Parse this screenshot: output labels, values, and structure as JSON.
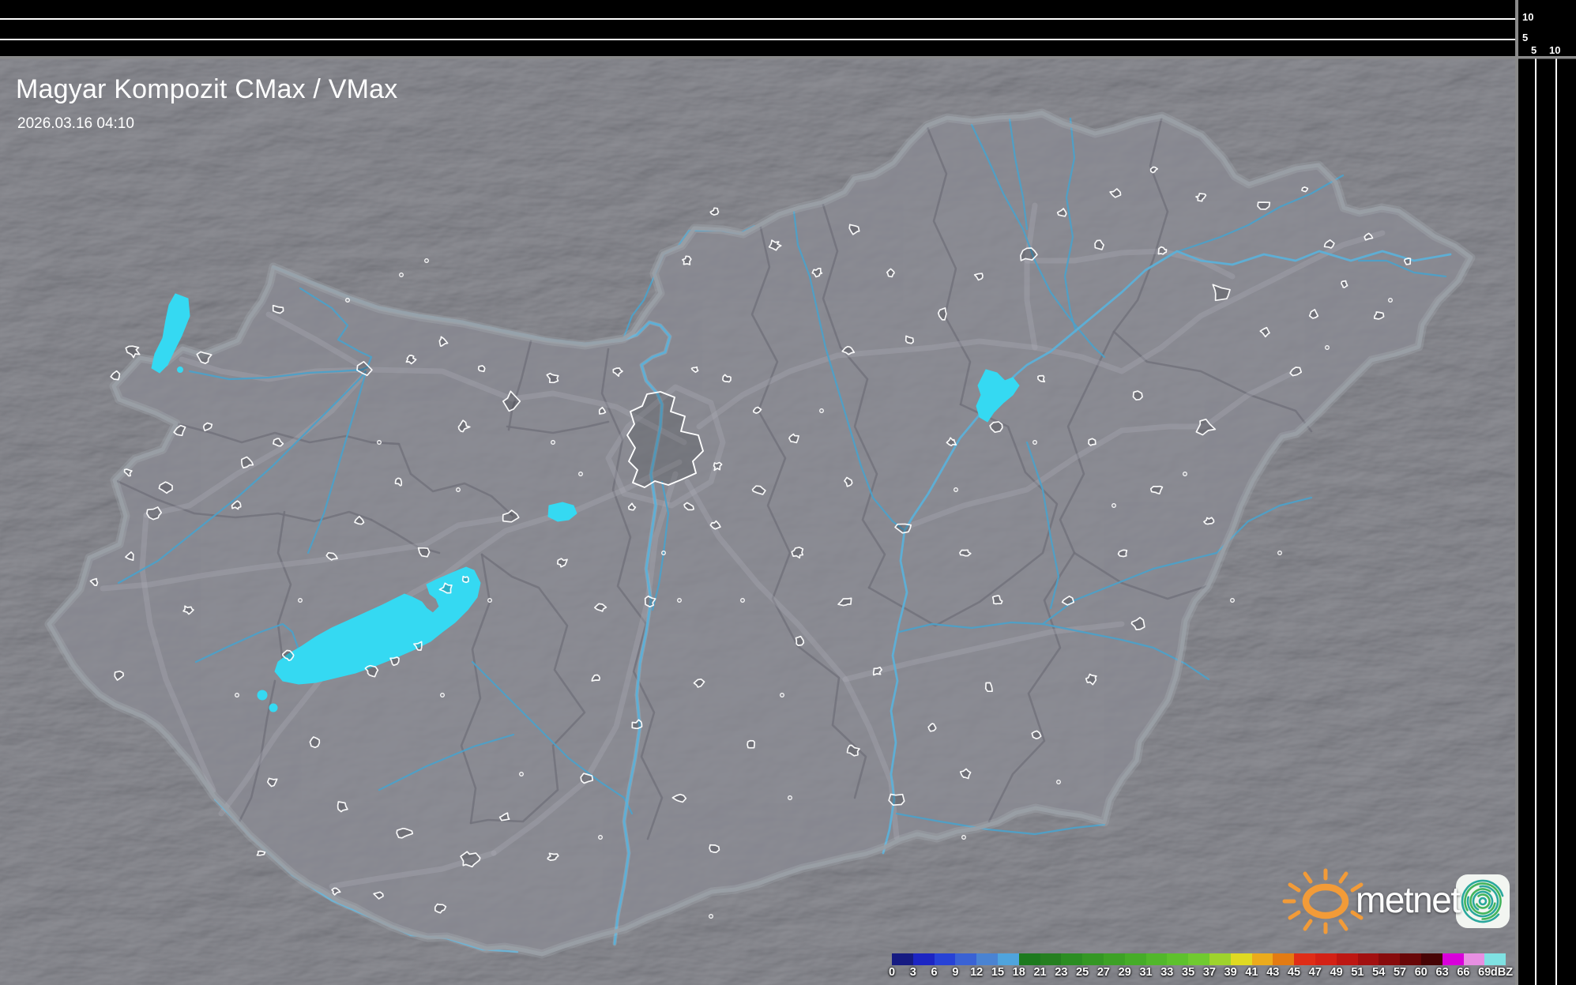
{
  "header": {
    "title": "Magyar Kompozit CMax / VMax",
    "datetime": "2026.03.16 04:10"
  },
  "profile_axes": {
    "top": [
      "10",
      "5"
    ],
    "right": [
      "5",
      "10"
    ]
  },
  "legend": {
    "unit": "dBZ",
    "ticks": [
      "0",
      "3",
      "6",
      "9",
      "12",
      "15",
      "18",
      "21",
      "23",
      "25",
      "27",
      "29",
      "31",
      "33",
      "35",
      "37",
      "39",
      "41",
      "43",
      "45",
      "47",
      "49",
      "51",
      "54",
      "57",
      "60",
      "63",
      "66",
      "69"
    ],
    "colors": [
      "#161b82",
      "#1c25c3",
      "#2742d6",
      "#3a62d4",
      "#4a83d2",
      "#4fa4dd",
      "#1d7a1e",
      "#257f20",
      "#2b8d22",
      "#349724",
      "#3da126",
      "#46ac28",
      "#52b72b",
      "#5ec12d",
      "#70ca30",
      "#9ed32c",
      "#e0da22",
      "#ecab1c",
      "#e37b13",
      "#df2d17",
      "#d32115",
      "#bd1712",
      "#a21010",
      "#880b0c",
      "#690708",
      "#470405",
      "#d900da",
      "#e78fe2",
      "#7fe2e3"
    ]
  },
  "branding": {
    "wordmark": "metnet",
    "sun_icon": "sun-icon",
    "app_icon": "spiral-icon",
    "sun_color": "#f29b38",
    "app_icon_teal": "#2aa89d",
    "app_icon_green": "#43b45c",
    "app_icon_bg": "#f2f5f1"
  },
  "map": {
    "colors": {
      "panel_background": "#000000",
      "frame": "#8a8a8a",
      "profile_line": "#ffffff",
      "outside_base": "#2e3036",
      "inside_base": "#3c3d44",
      "country_border": "#9aa0a6",
      "county_border": "#72727b",
      "road": "#aeb1bb",
      "river": "#4da0c8",
      "lake": "#35d9f2",
      "town_outline": "#ffffff"
    }
  }
}
